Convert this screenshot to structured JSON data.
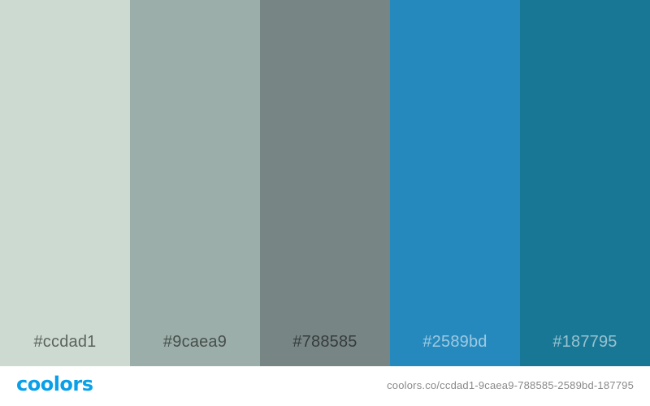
{
  "palette": {
    "swatches": [
      {
        "hex": "#ccdad1",
        "label": "#ccdad1",
        "label_color": "#000000"
      },
      {
        "hex": "#9caea9",
        "label": "#9caea9",
        "label_color": "#000000"
      },
      {
        "hex": "#788585",
        "label": "#788585",
        "label_color": "#000000"
      },
      {
        "hex": "#2589bd",
        "label": "#2589bd",
        "label_color": "#ffffff"
      },
      {
        "hex": "#187795",
        "label": "#187795",
        "label_color": "#ffffff"
      }
    ]
  },
  "footer": {
    "logo_text": "coolors",
    "logo_color": "#0aa0e8",
    "url": "coolors.co/ccdad1-9caea9-788585-2589bd-187795"
  }
}
